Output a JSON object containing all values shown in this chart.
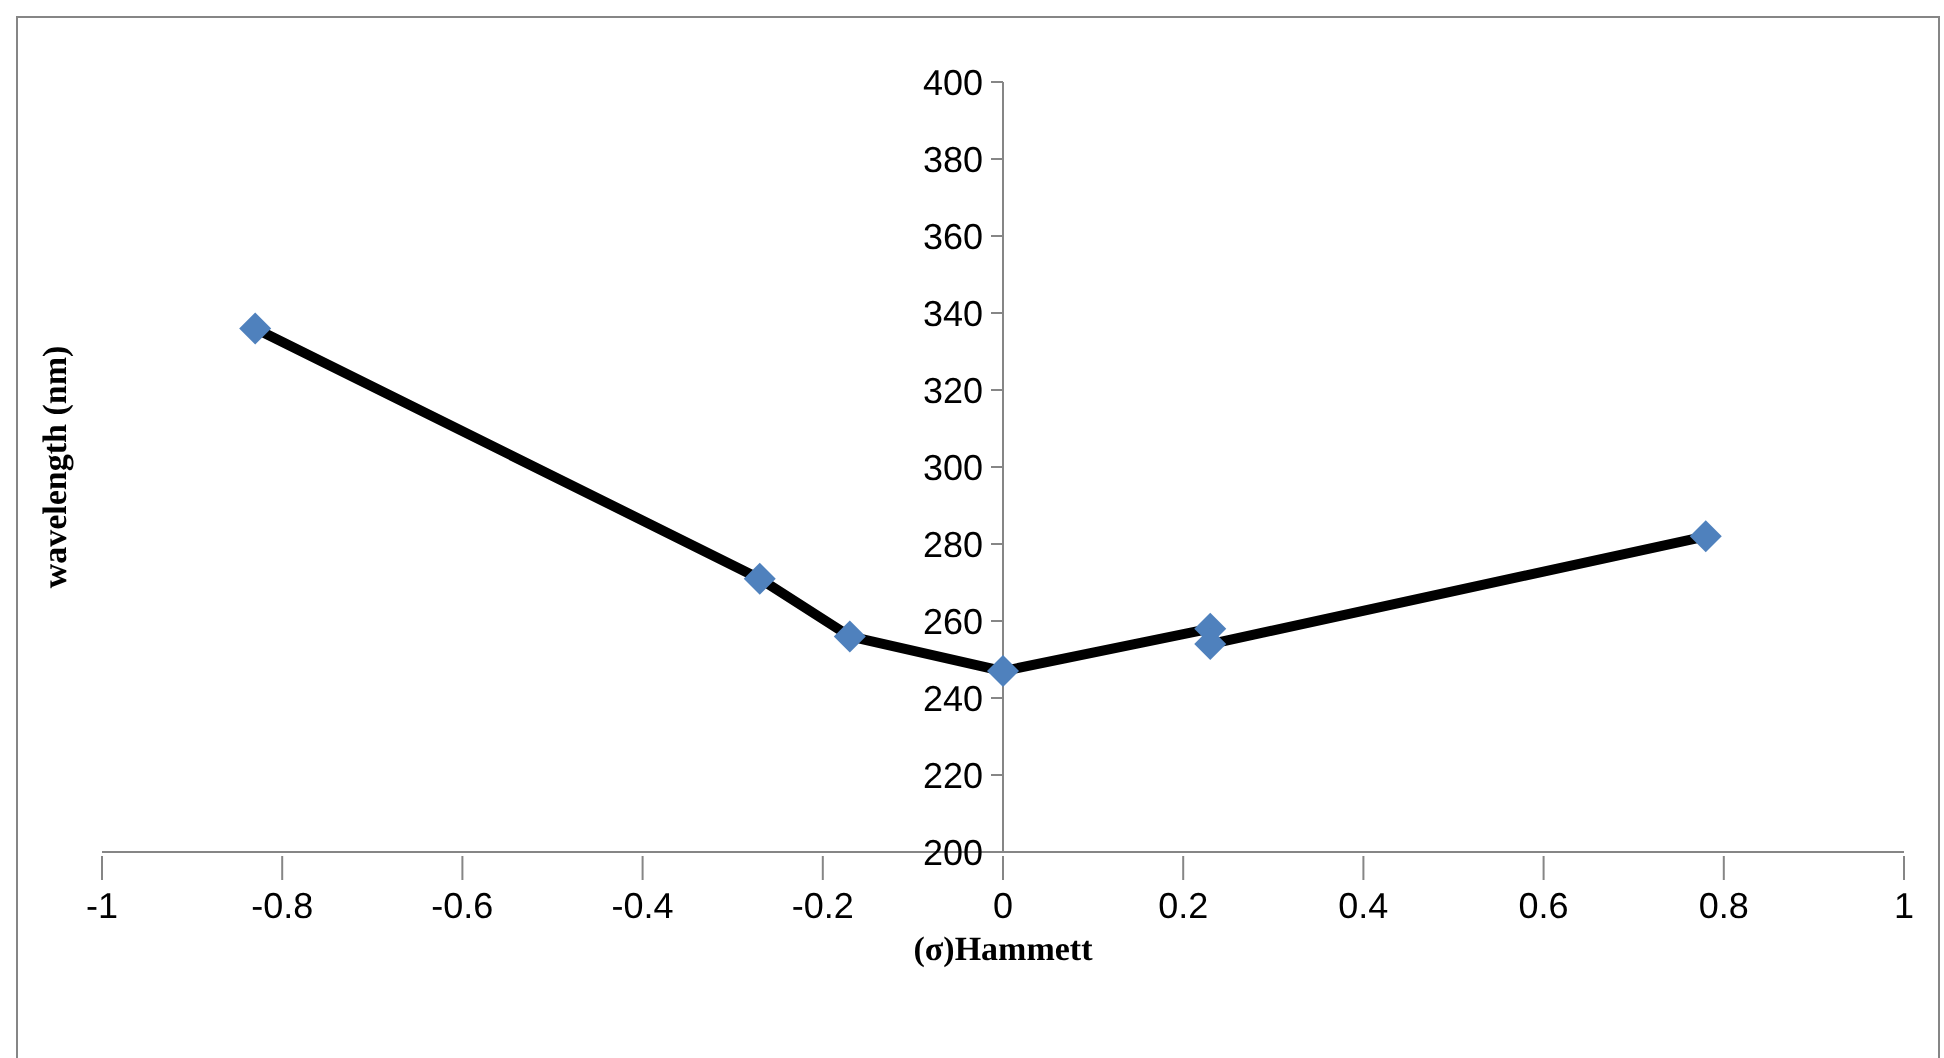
{
  "chart_data": {
    "type": "line",
    "xlabel": "(σ)Hammett",
    "ylabel": "wavelength (nm)",
    "x": [
      -0.83,
      -0.27,
      -0.17,
      0,
      0.23,
      0.23,
      0.78
    ],
    "series": [
      {
        "color": "#000000",
        "colors": [
          "#4f81bd",
          "#4f81bd",
          "#4f81bd",
          "#4f81bd",
          "#4f81bd",
          "#4f81bd",
          "#4f81bd"
        ],
        "values": [
          336,
          271,
          256,
          247,
          258,
          254,
          282
        ]
      }
    ],
    "marker": "diamond",
    "xlim": [
      -1,
      1
    ],
    "xticks": [
      -1,
      -0.8,
      -0.6,
      -0.4,
      -0.2,
      0,
      0.2,
      0.4,
      0.6,
      0.8,
      1
    ],
    "ylim": [
      200,
      400
    ],
    "yticks": [
      200,
      220,
      240,
      260,
      280,
      300,
      320,
      340,
      360,
      380,
      400
    ],
    "grid": false,
    "legend": false
  }
}
